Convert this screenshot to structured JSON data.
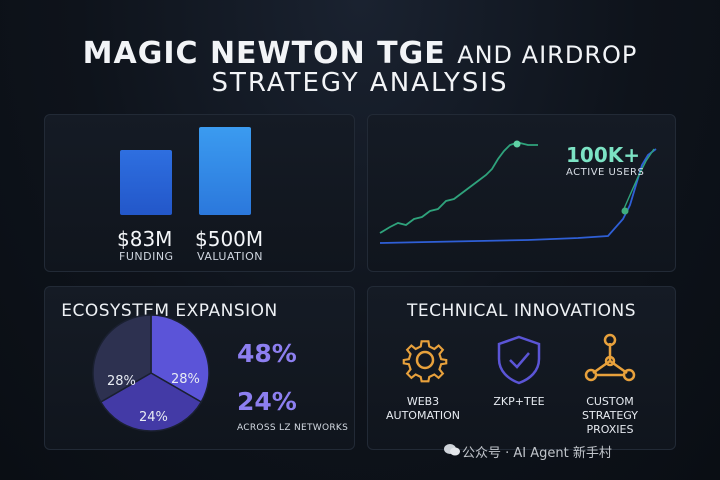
{
  "title": {
    "line1_main": "MAGIC NEWTON TGE",
    "line1_tail": "AND AIRDROP",
    "line2": "STRATEGY ANALYSIS"
  },
  "funding": {
    "items": [
      {
        "value": "$83M",
        "label": "FUNDING",
        "amount": 83
      },
      {
        "value": "$500M",
        "label": "VALUATION",
        "amount": 500
      }
    ]
  },
  "growth": {
    "value": "100K+",
    "label": "ACTIVE USERS",
    "line_color_green": "#2fa37c",
    "line_color_blue": "#2f5fd6"
  },
  "ecosystem": {
    "heading": "ECOSYSTEM EXPANSION",
    "slices": [
      {
        "label": "28%",
        "value": 28,
        "color": "#5b54d8"
      },
      {
        "label": "24%",
        "value": 24,
        "color": "#433aa6"
      },
      {
        "label": "28%",
        "value": 28,
        "color": "#2d3150"
      }
    ],
    "stat1": "48%",
    "stat2": "24%",
    "note": "ACROSS LZ NETWORKS"
  },
  "innovations": {
    "heading": "TECHNICAL INNOVATIONS",
    "items": [
      {
        "icon": "gear-icon",
        "line1": "WEB3",
        "line2": "AUTOMATION",
        "line3": ""
      },
      {
        "icon": "shield-check-icon",
        "line1": "ZKP+TEE",
        "line2": "",
        "line3": ""
      },
      {
        "icon": "network-nodes-icon",
        "line1": "CUSTOM",
        "line2": "STRATEGY",
        "line3": "PROXIES"
      }
    ],
    "accent": "#e8a13c"
  },
  "watermark": "公众号 · AI Agent 新手村"
}
